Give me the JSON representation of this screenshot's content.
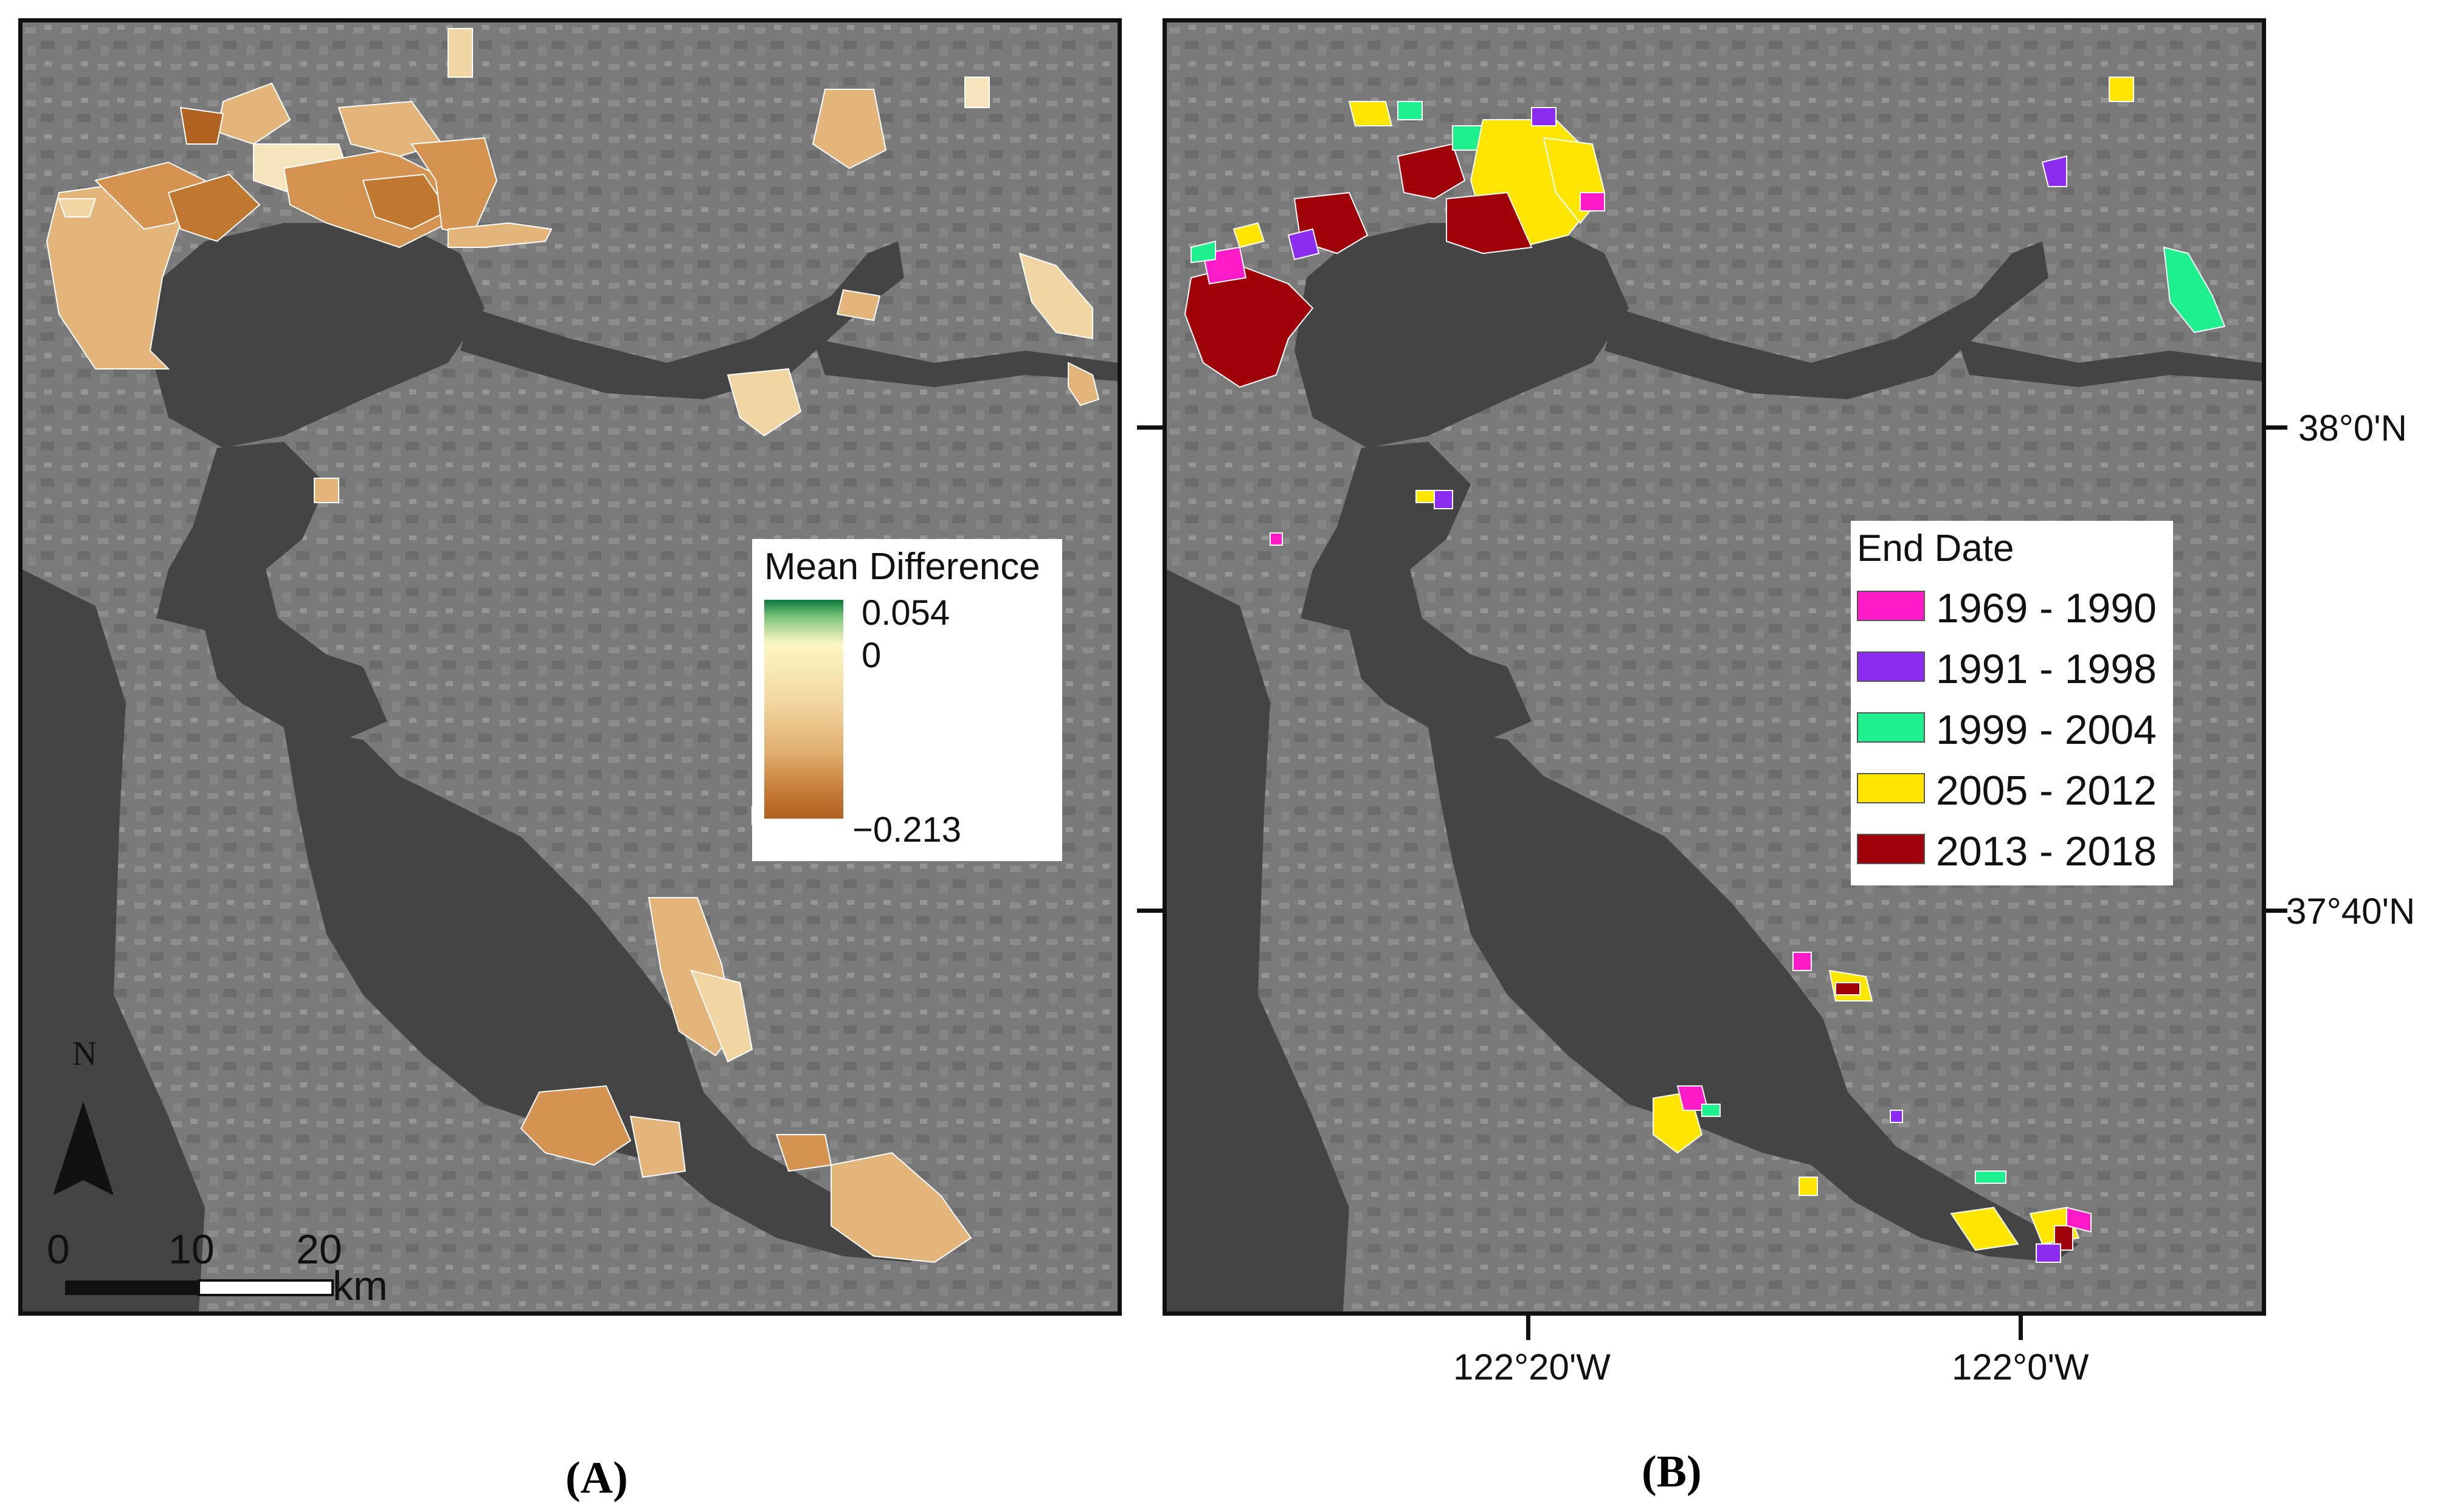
{
  "panel_a": {
    "caption": "(A)",
    "legend": {
      "title": "Mean Difference",
      "max_label": "0.054",
      "zero_label": "0",
      "min_label": "−0.213",
      "gradient_colors": [
        "#0a7a3c",
        "#7fc47e",
        "#fdf7c4",
        "#f2d9a3",
        "#e0ad6e",
        "#c47a36",
        "#b0601f"
      ]
    },
    "north_arrow": {
      "label": "N",
      "icon": "north-arrow-icon"
    },
    "scale_bar": {
      "ticks": [
        "0",
        "10",
        "20"
      ],
      "unit": "km"
    },
    "polygon_colors": [
      "#e3b57a",
      "#d49350",
      "#c0772f",
      "#f1d5a3",
      "#f6e4bc",
      "#b0601f"
    ]
  },
  "panel_b": {
    "caption": "(B)",
    "legend": {
      "title": "End Date",
      "items": [
        {
          "label": "1969 - 1990",
          "color": "#ff1cc8"
        },
        {
          "label": "1991 - 1998",
          "color": "#8b2cf0"
        },
        {
          "label": "1999 - 2004",
          "color": "#1ef08e"
        },
        {
          "label": "2005 - 2012",
          "color": "#ffe600"
        },
        {
          "label": "2013 - 2018",
          "color": "#a00008"
        }
      ]
    },
    "latitude_labels": [
      "38°0'N",
      "37°40'N"
    ],
    "longitude_labels": [
      "122°20'W",
      "122°0'W"
    ]
  },
  "colors": {
    "water": "#444444",
    "land": "#7d7d7d",
    "frame": "#111111"
  }
}
